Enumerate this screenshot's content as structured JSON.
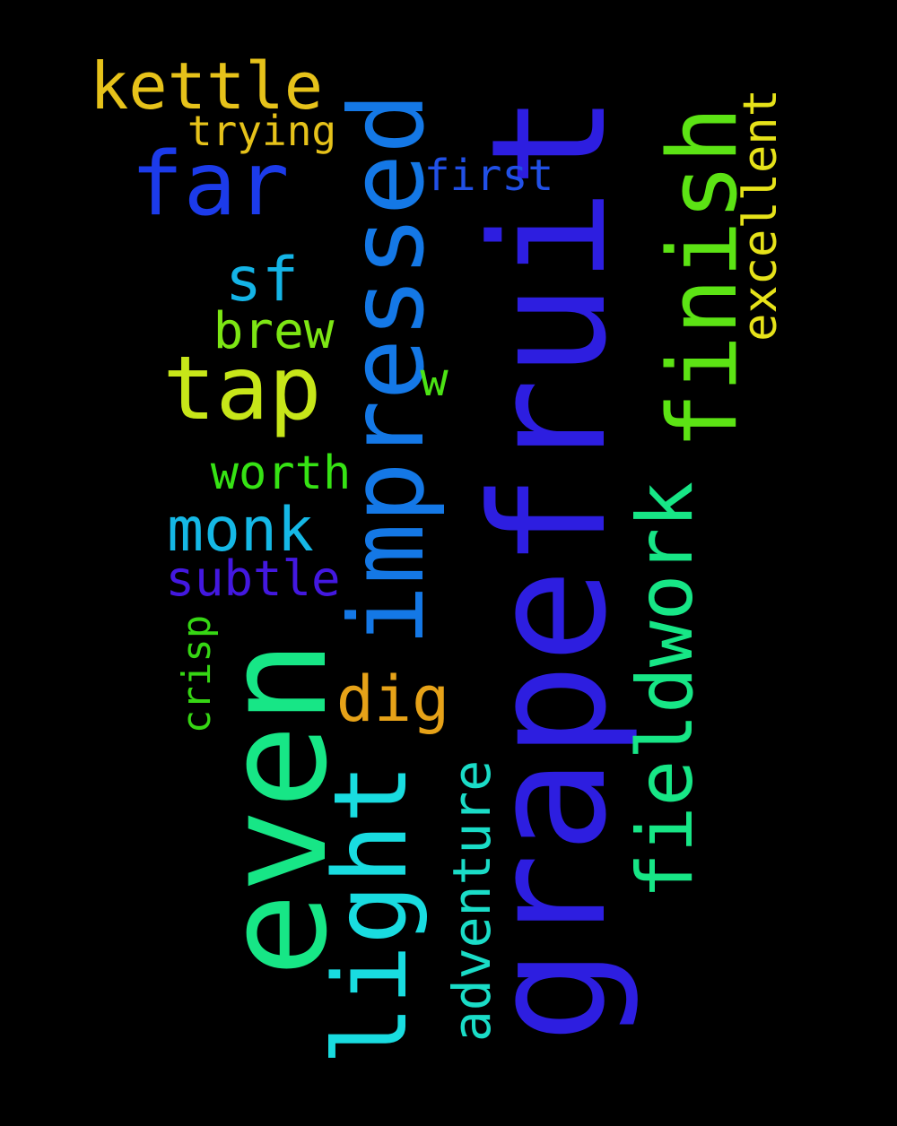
{
  "background": "#000000",
  "words": [
    {
      "key": "grapefruit",
      "text": "grapefruit",
      "color": "#2d1ee0"
    },
    {
      "key": "even",
      "text": "even",
      "color": "#17e686"
    },
    {
      "key": "impressed",
      "text": "impressed",
      "color": "#1478e6"
    },
    {
      "key": "light",
      "text": "light",
      "color": "#19dce0"
    },
    {
      "key": "finish",
      "text": "finish",
      "color": "#5ce314"
    },
    {
      "key": "fieldwork",
      "text": "fieldwork",
      "color": "#17e686"
    },
    {
      "key": "far",
      "text": "far",
      "color": "#1c3bea"
    },
    {
      "key": "tap",
      "text": "tap",
      "color": "#c7e619"
    },
    {
      "key": "adventure",
      "text": "adventure",
      "color": "#1adcc7"
    },
    {
      "key": "excellent",
      "text": "excellent",
      "color": "#e6e219"
    },
    {
      "key": "monk",
      "text": "monk",
      "color": "#15b8e6"
    },
    {
      "key": "kettle",
      "text": "kettle",
      "color": "#e6c21a"
    },
    {
      "key": "dig",
      "text": "dig",
      "color": "#e6a218"
    },
    {
      "key": "sf",
      "text": "sf",
      "color": "#14b4e6"
    },
    {
      "key": "brew",
      "text": "brew",
      "color": "#7de614"
    },
    {
      "key": "worth",
      "text": "worth",
      "color": "#36e214"
    },
    {
      "key": "subtle",
      "text": "subtle",
      "color": "#4318e0"
    },
    {
      "key": "crisp",
      "text": "crisp",
      "color": "#36d614"
    },
    {
      "key": "trying",
      "text": "trying",
      "color": "#e6c21a"
    },
    {
      "key": "first",
      "text": "first",
      "color": "#2150e6"
    },
    {
      "key": "w",
      "text": "w",
      "color": "#4ce314"
    }
  ]
}
